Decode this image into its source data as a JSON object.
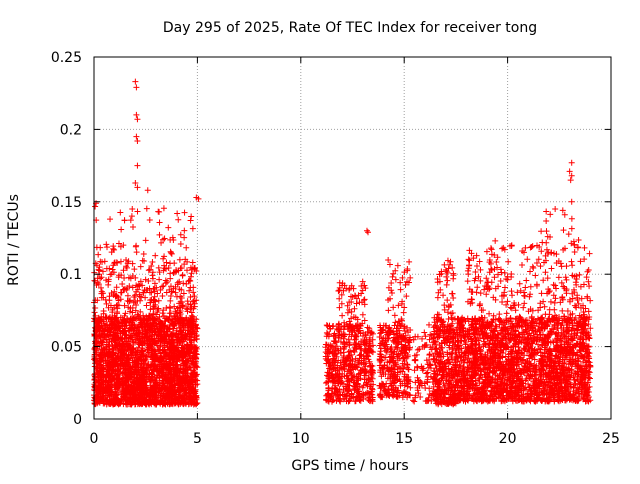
{
  "chart_data": {
    "type": "scatter",
    "title": "Day 295 of 2025, Rate Of TEC Index for receiver tong",
    "xlabel": "GPS time / hours",
    "ylabel": "ROTI / TECUs",
    "xlim": [
      0,
      25
    ],
    "ylim": [
      0,
      0.25
    ],
    "xticks": [
      "0",
      "5",
      "10",
      "15",
      "20",
      "25"
    ],
    "yticks": [
      "0",
      "0.05",
      "0.1",
      "0.15",
      "0.2",
      "0.25"
    ],
    "grid": true,
    "marker": "+",
    "series_color": "#ff0000",
    "clusters": [
      {
        "x_range": [
          0.0,
          5.0
        ],
        "y_range": [
          0.01,
          0.07
        ],
        "count": 2600
      },
      {
        "x_range": [
          0.0,
          5.0
        ],
        "y_range": [
          0.07,
          0.11
        ],
        "count": 320
      },
      {
        "x_range": [
          0.0,
          5.0
        ],
        "y_range": [
          0.11,
          0.15
        ],
        "count": 60
      },
      {
        "x_range": [
          11.2,
          13.5
        ],
        "y_range": [
          0.012,
          0.065
        ],
        "count": 550
      },
      {
        "x_range": [
          11.8,
          13.2
        ],
        "y_range": [
          0.065,
          0.095
        ],
        "count": 60
      },
      {
        "x_range": [
          13.8,
          15.3
        ],
        "y_range": [
          0.015,
          0.065
        ],
        "count": 330
      },
      {
        "x_range": [
          14.2,
          15.3
        ],
        "y_range": [
          0.065,
          0.11
        ],
        "count": 40
      },
      {
        "x_range": [
          15.4,
          16.4
        ],
        "y_range": [
          0.012,
          0.06
        ],
        "count": 80
      },
      {
        "x_range": [
          16.4,
          17.5
        ],
        "y_range": [
          0.01,
          0.07
        ],
        "count": 380
      },
      {
        "x_range": [
          16.6,
          17.4
        ],
        "y_range": [
          0.07,
          0.11
        ],
        "count": 40
      },
      {
        "x_range": [
          17.5,
          24.0
        ],
        "y_range": [
          0.012,
          0.07
        ],
        "count": 2300
      },
      {
        "x_range": [
          18.0,
          24.0
        ],
        "y_range": [
          0.07,
          0.12
        ],
        "count": 260
      },
      {
        "x_range": [
          21.5,
          23.5
        ],
        "y_range": [
          0.12,
          0.145
        ],
        "count": 20
      }
    ],
    "notable_points": [
      {
        "x": 2.0,
        "y": 0.233
      },
      {
        "x": 2.05,
        "y": 0.229
      },
      {
        "x": 2.05,
        "y": 0.21
      },
      {
        "x": 2.1,
        "y": 0.207
      },
      {
        "x": 2.05,
        "y": 0.195
      },
      {
        "x": 2.1,
        "y": 0.192
      },
      {
        "x": 2.1,
        "y": 0.175
      },
      {
        "x": 2.0,
        "y": 0.163
      },
      {
        "x": 2.1,
        "y": 0.16
      },
      {
        "x": 2.6,
        "y": 0.158
      },
      {
        "x": 4.95,
        "y": 0.153
      },
      {
        "x": 5.05,
        "y": 0.152
      },
      {
        "x": 0.1,
        "y": 0.149
      },
      {
        "x": 1.85,
        "y": 0.145
      },
      {
        "x": 13.2,
        "y": 0.13
      },
      {
        "x": 13.25,
        "y": 0.129
      },
      {
        "x": 23.1,
        "y": 0.177
      },
      {
        "x": 23.0,
        "y": 0.171
      },
      {
        "x": 23.1,
        "y": 0.168
      },
      {
        "x": 23.05,
        "y": 0.165
      },
      {
        "x": 23.1,
        "y": 0.15
      },
      {
        "x": 22.3,
        "y": 0.145
      },
      {
        "x": 16.2,
        "y": 0.065
      },
      {
        "x": 20.2,
        "y": 0.12
      },
      {
        "x": 19.4,
        "y": 0.123
      }
    ]
  }
}
